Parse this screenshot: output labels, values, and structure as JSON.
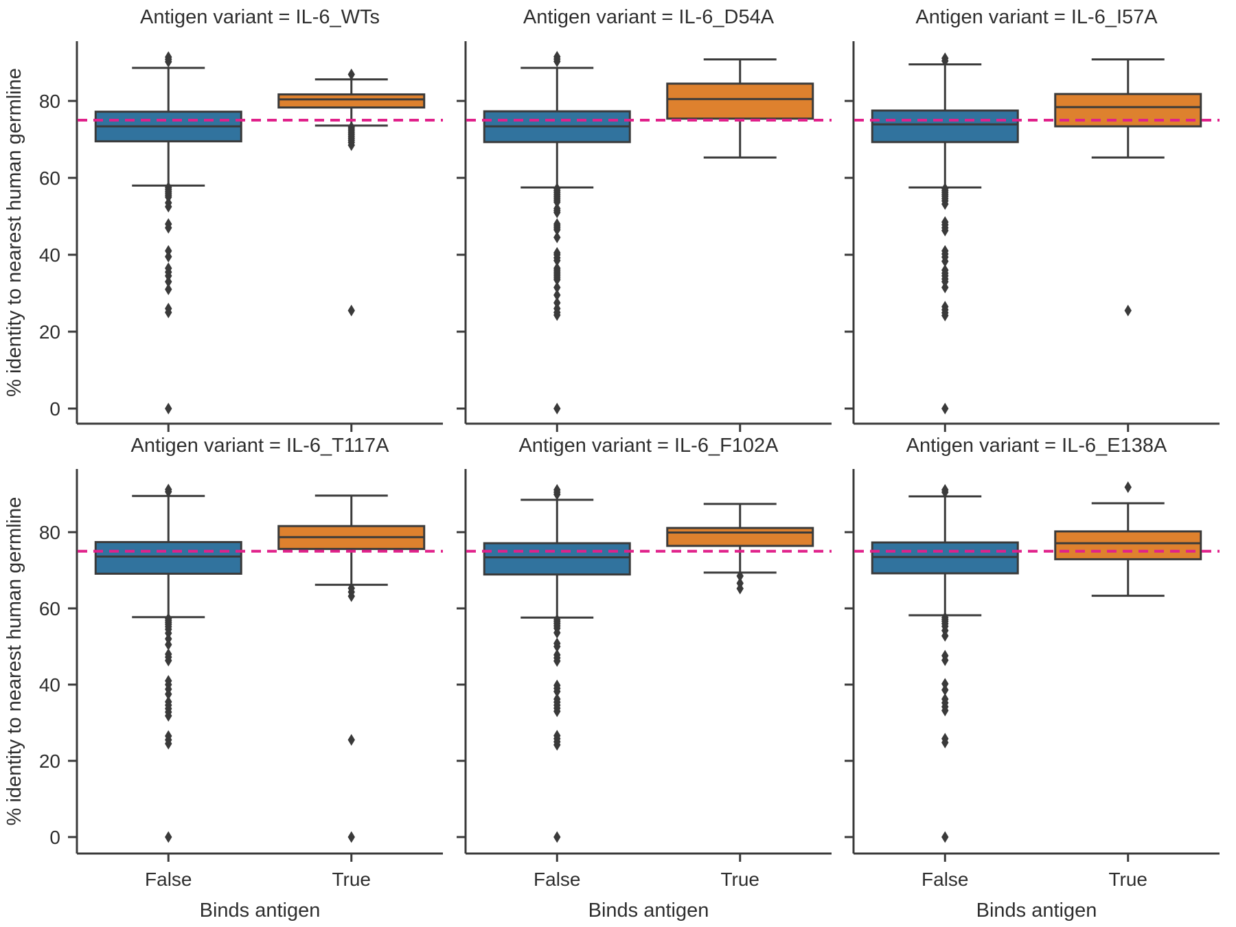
{
  "figure": {
    "ylabel": "% identity to nearest human germline",
    "xlabel": "Binds antigen",
    "categories": [
      "False",
      "True"
    ],
    "y_ticks": [
      0,
      20,
      40,
      60,
      80
    ],
    "ylim": [
      -4,
      96
    ],
    "rows": 2,
    "cols": 3,
    "grid": "off",
    "reference_line": 75,
    "title_prefix": "Antigen variant = "
  },
  "colors": {
    "box_false": "#31739E",
    "box_true": "#DE812E",
    "edge": "#3A3A3A",
    "reference": "#E0218A",
    "text": "#2E2E2E",
    "background": "#FFFFFF"
  },
  "chart_data": [
    {
      "type": "box",
      "panel": "IL-6_WTs",
      "title": "Antigen variant = IL-6_WTs",
      "series": [
        {
          "name": "False",
          "color_key": "box_false",
          "whisker_low": 58,
          "q1": 69.5,
          "median": 73.4,
          "q3": 77.2,
          "whisker_high": 88.6,
          "outliers_above": [
            90.2,
            90.8,
            91.4
          ],
          "outliers_below": [
            57.5,
            57,
            56.5,
            56,
            55.5,
            55,
            53.5,
            52.5,
            48,
            47,
            41,
            39.5,
            36.5,
            35.5,
            34.5,
            33,
            31,
            26,
            25,
            0
          ]
        },
        {
          "name": "True",
          "color_key": "box_true",
          "whisker_low": 73.6,
          "q1": 78.3,
          "median": 80.4,
          "q3": 81.7,
          "whisker_high": 85.6,
          "outliers_above": [
            86.9
          ],
          "outliers_below": [
            73.2,
            72.7,
            72.2,
            71.7,
            71.2,
            70.7,
            70.2,
            69.7,
            69.2,
            68.5,
            25.5
          ]
        }
      ]
    },
    {
      "type": "box",
      "panel": "IL-6_D54A",
      "title": "Antigen variant = IL-6_D54A",
      "series": [
        {
          "name": "False",
          "color_key": "box_false",
          "whisker_low": 57.5,
          "q1": 69.3,
          "median": 73.4,
          "q3": 77.3,
          "whisker_high": 88.6,
          "outliers_above": [
            90.3,
            90.9,
            91.5
          ],
          "outliers_below": [
            57.2,
            56.7,
            56.2,
            55.7,
            55.2,
            54.7,
            54.2,
            53.7,
            52,
            51.5,
            51,
            48,
            47.5,
            47,
            46.5,
            44.5,
            40.5,
            40,
            39.2,
            38.5,
            36.5,
            36,
            35.5,
            35,
            34.5,
            34,
            33.5,
            31.5,
            29.5,
            27.5,
            26,
            25,
            24.3,
            0
          ]
        },
        {
          "name": "True",
          "color_key": "box_true",
          "whisker_low": 65.3,
          "q1": 75.4,
          "median": 80.5,
          "q3": 84.5,
          "whisker_high": 90.8,
          "outliers_above": [],
          "outliers_below": []
        }
      ]
    },
    {
      "type": "box",
      "panel": "IL-6_I57A",
      "title": "Antigen variant = IL-6_I57A",
      "series": [
        {
          "name": "False",
          "color_key": "box_false",
          "whisker_low": 57.5,
          "q1": 69.3,
          "median": 73.9,
          "q3": 77.5,
          "whisker_high": 89.5,
          "outliers_above": [
            90.4,
            91.1
          ],
          "outliers_below": [
            57.2,
            56.7,
            56.2,
            55.7,
            55.2,
            54.6,
            54,
            53.2,
            48.5,
            47.8,
            47,
            46.3,
            41,
            40.2,
            39.4,
            38.3,
            36,
            35.2,
            34.5,
            33.7,
            33,
            31.5,
            26.5,
            25.7,
            24.9,
            24.2,
            0
          ]
        },
        {
          "name": "True",
          "color_key": "box_true",
          "whisker_low": 65.3,
          "q1": 73.4,
          "median": 78.4,
          "q3": 81.8,
          "whisker_high": 90.8,
          "outliers_above": [],
          "outliers_below": [
            25.5
          ]
        }
      ]
    },
    {
      "type": "box",
      "panel": "IL-6_T117A",
      "title": "Antigen variant = IL-6_T117A",
      "series": [
        {
          "name": "False",
          "color_key": "box_false",
          "whisker_low": 57.7,
          "q1": 69.1,
          "median": 73.6,
          "q3": 77.4,
          "whisker_high": 89.5,
          "outliers_above": [
            90.6,
            91.2
          ],
          "outliers_below": [
            57.3,
            56.8,
            56.3,
            55.8,
            55.2,
            54.5,
            53.5,
            52,
            50.5,
            48,
            47.2,
            46.3,
            41,
            40,
            38.8,
            37.5,
            35.5,
            34.6,
            33.7,
            32.8,
            31.8,
            26.5,
            25.5,
            24.5,
            0
          ]
        },
        {
          "name": "True",
          "color_key": "box_true",
          "whisker_low": 66.2,
          "q1": 75.6,
          "median": 78.7,
          "q3": 81.6,
          "whisker_high": 89.6,
          "outliers_above": [],
          "outliers_below": [
            65.3,
            64.3,
            63.2,
            25.5,
            0
          ]
        }
      ]
    },
    {
      "type": "box",
      "panel": "IL-6_F102A",
      "title": "Antigen variant = IL-6_F102A",
      "series": [
        {
          "name": "False",
          "color_key": "box_false",
          "whisker_low": 57.6,
          "q1": 68.9,
          "median": 73.4,
          "q3": 77.1,
          "whisker_high": 88.5,
          "outliers_above": [
            89.9,
            90.5,
            91.1
          ],
          "outliers_below": [
            57,
            56.5,
            56,
            55.4,
            54.8,
            53.6,
            50.8,
            50,
            47.8,
            47,
            46.2,
            39.8,
            39,
            38.2,
            36.2,
            35.4,
            34.6,
            33.8,
            33,
            26.6,
            25.8,
            25,
            24.2,
            0
          ]
        },
        {
          "name": "True",
          "color_key": "box_true",
          "whisker_low": 69.4,
          "q1": 76.4,
          "median": 79.9,
          "q3": 81.1,
          "whisker_high": 87.4,
          "outliers_above": [],
          "outliers_below": [
            68.5,
            66.6,
            65.2
          ]
        }
      ]
    },
    {
      "type": "box",
      "panel": "IL-6_E138A",
      "title": "Antigen variant = IL-6_E138A",
      "series": [
        {
          "name": "False",
          "color_key": "box_false",
          "whisker_low": 58.2,
          "q1": 69.2,
          "median": 73.5,
          "q3": 77.3,
          "whisker_high": 89.4,
          "outliers_above": [
            90.5,
            91.1
          ],
          "outliers_below": [
            57.6,
            57.1,
            56.6,
            56,
            55.3,
            54.2,
            52.8,
            47.6,
            46.4,
            40.2,
            38.6,
            36.2,
            35.2,
            34.2,
            33.2,
            25.8,
            24.8,
            0
          ]
        },
        {
          "name": "True",
          "color_key": "box_true",
          "whisker_low": 63.3,
          "q1": 72.9,
          "median": 77.1,
          "q3": 80.2,
          "whisker_high": 87.6,
          "outliers_above": [
            91.8
          ],
          "outliers_below": []
        }
      ]
    }
  ]
}
